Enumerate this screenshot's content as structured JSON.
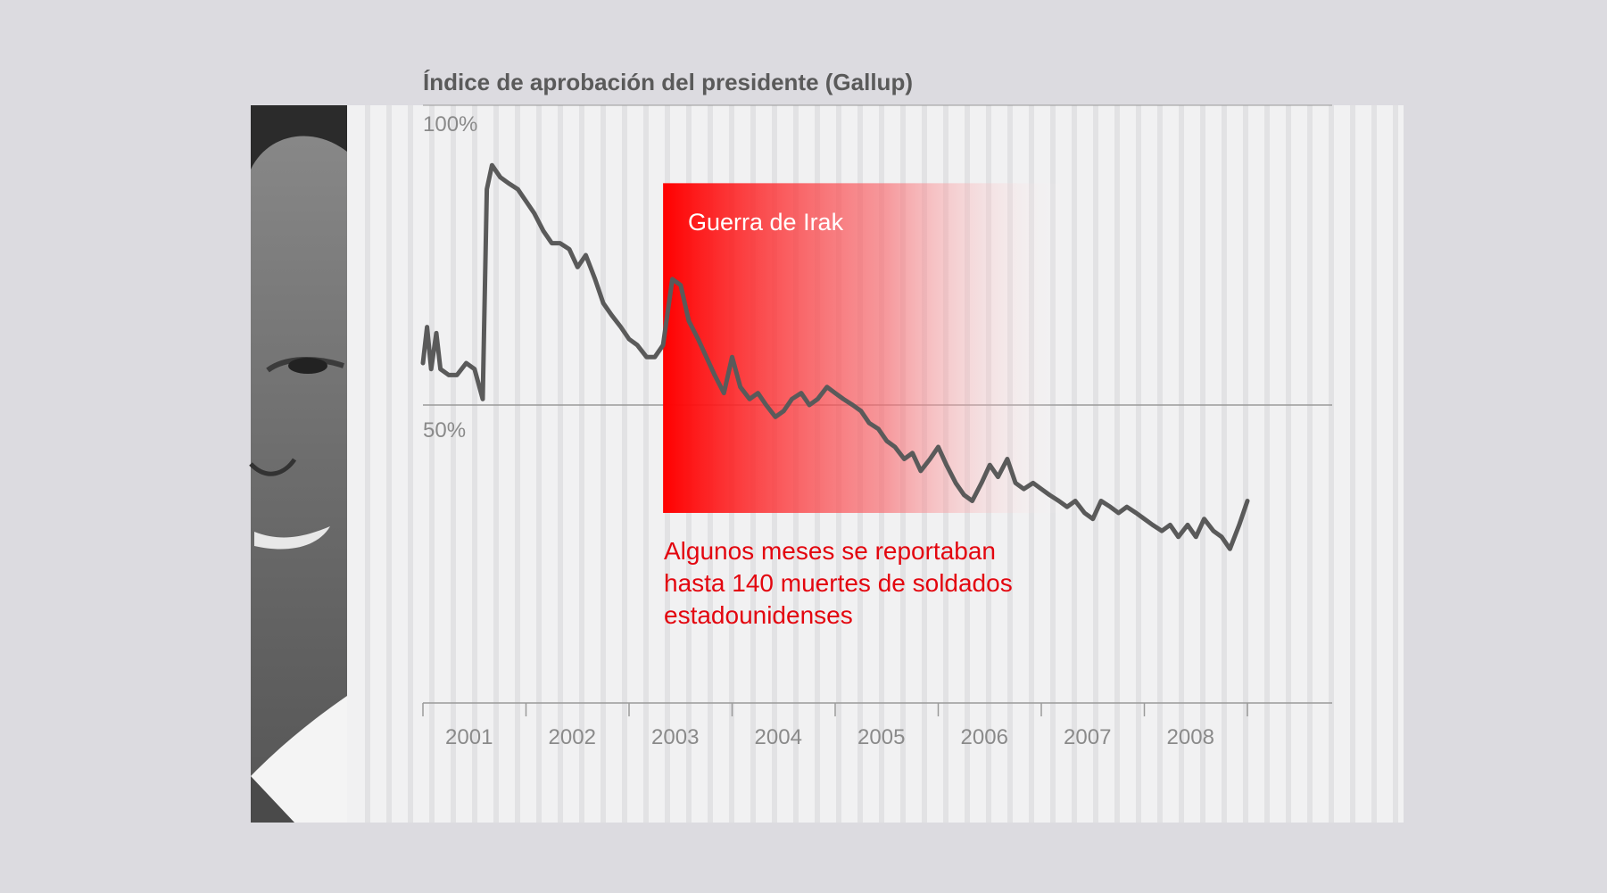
{
  "chart_data": {
    "type": "line",
    "title": "Índice de aprobación del presidente (Gallup)",
    "xlabel": "",
    "ylabel": "",
    "x_ticks": [
      "2001",
      "2002",
      "2003",
      "2004",
      "2005",
      "2006",
      "2007",
      "2008"
    ],
    "y_ticks": [
      "100%",
      "50%"
    ],
    "xlim": [
      2001.0,
      2009.8
    ],
    "ylim": [
      0,
      100
    ],
    "grid": "vertical stripes",
    "annotations": {
      "highlight_label": "Guerra de Irak",
      "highlight_range": [
        2003.33,
        2006.33
      ],
      "highlight_y": [
        32,
        87
      ],
      "note": [
        "Algunos meses se reportaban",
        "hasta 140 muertes de soldados",
        "estadounidenses"
      ]
    },
    "series": [
      {
        "color": "#5a5a5a",
        "points": [
          [
            2001.0,
            57
          ],
          [
            2001.04,
            63
          ],
          [
            2001.08,
            56
          ],
          [
            2001.13,
            62
          ],
          [
            2001.17,
            56
          ],
          [
            2001.25,
            55
          ],
          [
            2001.33,
            55
          ],
          [
            2001.42,
            57
          ],
          [
            2001.5,
            56
          ],
          [
            2001.58,
            51
          ],
          [
            2001.62,
            86
          ],
          [
            2001.67,
            90
          ],
          [
            2001.75,
            88
          ],
          [
            2001.83,
            87
          ],
          [
            2001.92,
            86
          ],
          [
            2002.0,
            84
          ],
          [
            2002.08,
            82
          ],
          [
            2002.17,
            79
          ],
          [
            2002.25,
            77
          ],
          [
            2002.33,
            77
          ],
          [
            2002.42,
            76
          ],
          [
            2002.5,
            73
          ],
          [
            2002.58,
            75
          ],
          [
            2002.67,
            71
          ],
          [
            2002.75,
            67
          ],
          [
            2002.83,
            65
          ],
          [
            2002.92,
            63
          ],
          [
            2003.0,
            61
          ],
          [
            2003.08,
            60
          ],
          [
            2003.17,
            58
          ],
          [
            2003.25,
            58
          ],
          [
            2003.33,
            60
          ],
          [
            2003.42,
            71
          ],
          [
            2003.5,
            70
          ],
          [
            2003.58,
            64
          ],
          [
            2003.67,
            61
          ],
          [
            2003.75,
            58
          ],
          [
            2003.83,
            55
          ],
          [
            2003.92,
            52
          ],
          [
            2004.0,
            58
          ],
          [
            2004.08,
            53
          ],
          [
            2004.17,
            51
          ],
          [
            2004.25,
            52
          ],
          [
            2004.33,
            50
          ],
          [
            2004.42,
            48
          ],
          [
            2004.5,
            49
          ],
          [
            2004.58,
            51
          ],
          [
            2004.67,
            52
          ],
          [
            2004.75,
            50
          ],
          [
            2004.83,
            51
          ],
          [
            2004.92,
            53
          ],
          [
            2005.0,
            52
          ],
          [
            2005.08,
            51
          ],
          [
            2005.17,
            50
          ],
          [
            2005.25,
            49
          ],
          [
            2005.33,
            47
          ],
          [
            2005.42,
            46
          ],
          [
            2005.5,
            44
          ],
          [
            2005.58,
            43
          ],
          [
            2005.67,
            41
          ],
          [
            2005.75,
            42
          ],
          [
            2005.83,
            39
          ],
          [
            2005.92,
            41
          ],
          [
            2006.0,
            43
          ],
          [
            2006.08,
            40
          ],
          [
            2006.17,
            37
          ],
          [
            2006.25,
            35
          ],
          [
            2006.33,
            34
          ],
          [
            2006.42,
            37
          ],
          [
            2006.5,
            40
          ],
          [
            2006.58,
            38
          ],
          [
            2006.67,
            41
          ],
          [
            2006.75,
            37
          ],
          [
            2006.83,
            36
          ],
          [
            2006.92,
            37
          ],
          [
            2007.0,
            36
          ],
          [
            2007.08,
            35
          ],
          [
            2007.17,
            34
          ],
          [
            2007.25,
            33
          ],
          [
            2007.33,
            34
          ],
          [
            2007.42,
            32
          ],
          [
            2007.5,
            31
          ],
          [
            2007.58,
            34
          ],
          [
            2007.67,
            33
          ],
          [
            2007.75,
            32
          ],
          [
            2007.83,
            33
          ],
          [
            2007.92,
            32
          ],
          [
            2008.0,
            31
          ],
          [
            2008.08,
            30
          ],
          [
            2008.17,
            29
          ],
          [
            2008.25,
            30
          ],
          [
            2008.33,
            28
          ],
          [
            2008.42,
            30
          ],
          [
            2008.5,
            28
          ],
          [
            2008.58,
            31
          ],
          [
            2008.67,
            29
          ],
          [
            2008.75,
            28
          ],
          [
            2008.83,
            26
          ],
          [
            2008.92,
            30
          ],
          [
            2009.0,
            34
          ]
        ]
      }
    ]
  }
}
